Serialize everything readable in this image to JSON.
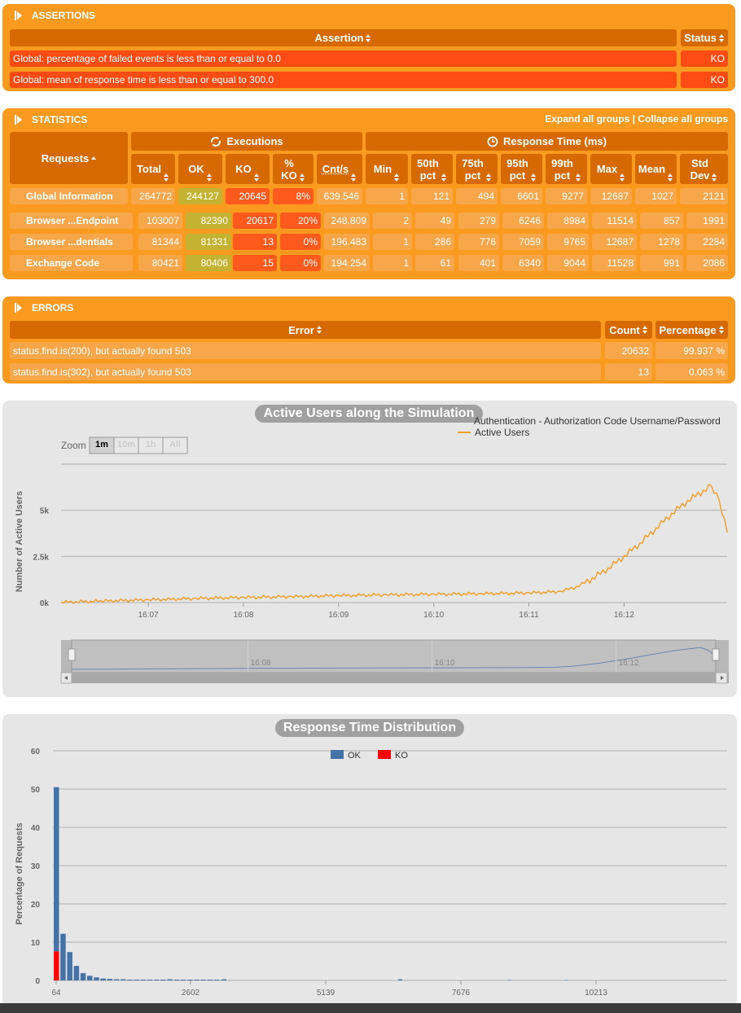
{
  "assertions": {
    "title": "ASSERTIONS",
    "col_assertion": "Assertion",
    "col_status": "Status",
    "rows": [
      {
        "text": "Global: percentage of failed events is less than or equal to 0.0",
        "status": "KO"
      },
      {
        "text": "Global: mean of response time is less than or equal to 300.0",
        "status": "KO"
      }
    ]
  },
  "statistics": {
    "title": "STATISTICS",
    "expand_all": "Expand all groups",
    "separator": "|",
    "collapse_all": "Collapse all groups",
    "executions_label": "Executions",
    "response_time_label": "Response Time (ms)",
    "requests_label": "Requests",
    "columns": {
      "total": "Total",
      "ok": "OK",
      "ko": "KO",
      "pct_ko_1": "%",
      "pct_ko_2": "KO",
      "cnts": "Cnt/s",
      "min": "Min",
      "p50_1": "50th",
      "p50_2": "pct",
      "p75_1": "75th",
      "p75_2": "pct",
      "p95_1": "95th",
      "p95_2": "pct",
      "p99_1": "99th",
      "p99_2": "pct",
      "max": "Max",
      "mean": "Mean",
      "std_1": "Std",
      "std_2": "Dev"
    },
    "rows": [
      {
        "name": "Global Information",
        "total": "264772",
        "ok": "244127",
        "ko": "20645",
        "pct": "8%",
        "cnts": "639.546",
        "min": "1",
        "p50": "121",
        "p75": "494",
        "p95": "6601",
        "p99": "9277",
        "max": "12687",
        "mean": "1027",
        "std": "2121"
      },
      {
        "name": "Browser ...Endpoint",
        "total": "103007",
        "ok": "82390",
        "ko": "20617",
        "pct": "20%",
        "cnts": "248.809",
        "min": "2",
        "p50": "49",
        "p75": "279",
        "p95": "6246",
        "p99": "8984",
        "max": "11514",
        "mean": "857",
        "std": "1991"
      },
      {
        "name": "Browser ...dentials",
        "total": "81344",
        "ok": "81331",
        "ko": "13",
        "pct": "0%",
        "cnts": "196.483",
        "min": "1",
        "p50": "286",
        "p75": "776",
        "p95": "7059",
        "p99": "9765",
        "max": "12687",
        "mean": "1278",
        "std": "2284"
      },
      {
        "name": "Exchange Code",
        "total": "80421",
        "ok": "80406",
        "ko": "15",
        "pct": "0%",
        "cnts": "194.254",
        "min": "1",
        "p50": "61",
        "p75": "401",
        "p95": "6340",
        "p99": "9044",
        "max": "11528",
        "mean": "991",
        "std": "2086"
      }
    ]
  },
  "errors": {
    "title": "ERRORS",
    "col_error": "Error",
    "col_count": "Count",
    "col_pct": "Percentage",
    "rows": [
      {
        "text": "status.find.is(200), but actually found 503",
        "count": "20632",
        "pct": "99.937 %"
      },
      {
        "text": "status.find.is(302), but actually found 503",
        "count": "13",
        "pct": "0.063 %"
      }
    ]
  },
  "colors": {
    "panel": "#fa9a1f",
    "header": "#d66a00",
    "ko": "#ff4b14",
    "ok_series": "#4572a7",
    "ko_series": "#ff0000",
    "users_line": "#f0a030"
  },
  "chart_data": [
    {
      "type": "line",
      "title": "Active Users along the Simulation",
      "ylabel": "Number of Active Users",
      "legend": [
        "Authentication - Authorization Code Username/Password",
        "Active Users"
      ],
      "zoom_label": "Zoom",
      "zoom_buttons": [
        "1m",
        "10m",
        "1h",
        "All"
      ],
      "y_ticks": [
        "0k",
        "2.5k",
        "5k"
      ],
      "x_ticks": [
        "16:07",
        "16:08",
        "16:09",
        "16:10",
        "16:11",
        "16:12"
      ],
      "navigator_ticks": [
        "16:08",
        "16:10",
        "16:12"
      ],
      "ylim": [
        0,
        7500
      ],
      "series": [
        {
          "name": "Active Users",
          "x": [
            "16:06:05",
            "16:06:30",
            "16:07:00",
            "16:07:30",
            "16:08:00",
            "16:08:30",
            "16:09:00",
            "16:09:30",
            "16:10:00",
            "16:10:30",
            "16:11:00",
            "16:11:20",
            "16:11:30",
            "16:11:40",
            "16:11:50",
            "16:12:00",
            "16:12:10",
            "16:12:20",
            "16:12:30",
            "16:12:40",
            "16:12:50",
            "16:12:55",
            "16:13:00",
            "16:13:05"
          ],
          "y": [
            20,
            80,
            150,
            220,
            280,
            320,
            380,
            420,
            450,
            480,
            520,
            600,
            850,
            1300,
            1850,
            2500,
            3200,
            4000,
            4800,
            5500,
            6050,
            6300,
            5500,
            3800
          ]
        }
      ]
    },
    {
      "type": "bar",
      "title": "Response Time Distribution",
      "ylabel": "Percentage of Requests",
      "legend": [
        "OK",
        "KO"
      ],
      "y_ticks": [
        "0",
        "10",
        "20",
        "30",
        "40",
        "50",
        "60"
      ],
      "x_ticks": [
        "64",
        "2602",
        "5139",
        "7676",
        "10213"
      ],
      "ylim": [
        0,
        60
      ],
      "series": [
        {
          "name": "OK",
          "values": [
            42.9,
            12.2,
            7.4,
            3.8,
            1.9,
            1.2,
            0.8,
            0.5,
            0.4,
            0.3,
            0.3,
            0.2,
            0.2,
            0.2,
            0.2,
            0.2,
            0.2,
            0.3,
            0.2,
            0.2,
            0.2,
            0.2,
            0.2,
            0.2,
            0.2,
            0.2
          ]
        },
        {
          "name": "KO",
          "values": [
            7.6,
            0,
            0,
            0,
            0,
            0,
            0,
            0,
            0,
            0,
            0,
            0,
            0,
            0,
            0,
            0,
            0,
            0,
            0,
            0,
            0,
            0,
            0,
            0,
            0,
            0
          ]
        }
      ]
    }
  ]
}
